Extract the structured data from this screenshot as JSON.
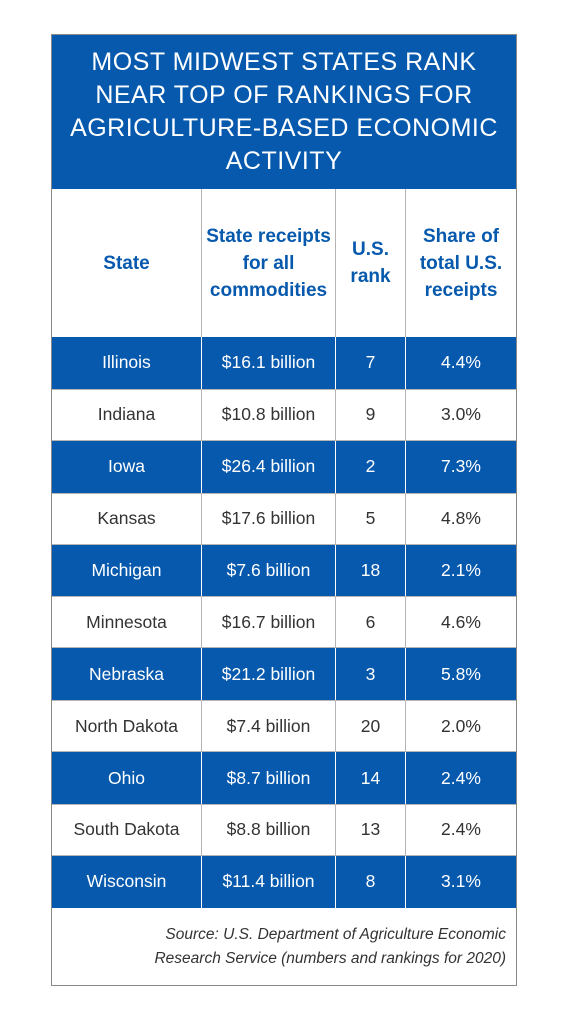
{
  "title": "MOST MIDWEST STATES RANK NEAR TOP OF RANKINGS FOR AGRICULTURE-BASED ECONOMIC  ACTIVITY",
  "colors": {
    "accent": "#0659ad",
    "text": "#333333",
    "background": "#ffffff"
  },
  "source": "Source: U.S. Department of Agriculture Economic Research Service (numbers and rankings for 2020)",
  "chart_data": {
    "type": "table",
    "title": "MOST MIDWEST STATES RANK NEAR TOP OF RANKINGS FOR AGRICULTURE-BASED ECONOMIC  ACTIVITY",
    "columns": [
      "State",
      "State receipts for all commodities",
      "U.S. rank",
      "Share of total U.S. receipts"
    ],
    "rows": [
      [
        "Illinois",
        "$16.1 billion",
        "7",
        "4.4%"
      ],
      [
        "Indiana",
        "$10.8 billion",
        "9",
        "3.0%"
      ],
      [
        "Iowa",
        "$26.4 billion",
        "2",
        "7.3%"
      ],
      [
        "Kansas",
        "$17.6 billion",
        "5",
        "4.8%"
      ],
      [
        "Michigan",
        "$7.6 billion",
        "18",
        "2.1%"
      ],
      [
        "Minnesota",
        "$16.7 billion",
        "6",
        "4.6%"
      ],
      [
        "Nebraska",
        "$21.2 billion",
        "3",
        "5.8%"
      ],
      [
        "North Dakota",
        "$7.4 billion",
        "20",
        "2.0%"
      ],
      [
        "Ohio",
        "$8.7 billion",
        "14",
        "2.4%"
      ],
      [
        "South Dakota",
        "$8.8 billion",
        "13",
        "2.4%"
      ],
      [
        "Wisconsin",
        "$11.4 billion",
        "8",
        "3.1%"
      ]
    ]
  }
}
